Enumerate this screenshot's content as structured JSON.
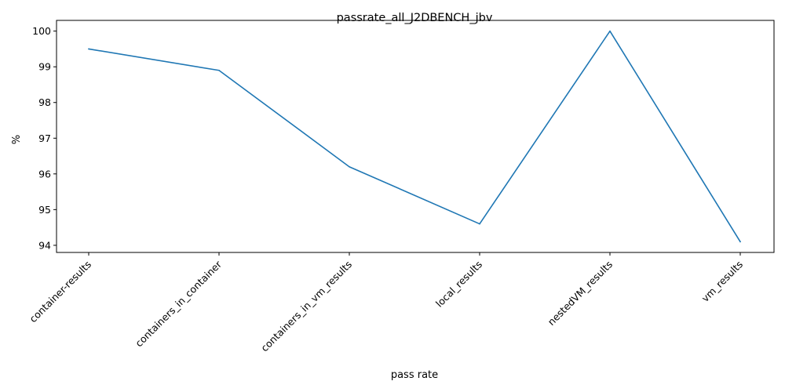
{
  "chart_data": {
    "type": "line",
    "title": "passrate_all_J2DBENCH_jbv",
    "xlabel": "pass rate",
    "ylabel": "%",
    "categories": [
      "container-results",
      "containers_in_container",
      "containers_in_vm_results",
      "local_results",
      "nestedVM_results",
      "vm_results"
    ],
    "series": [
      {
        "values": [
          99.5,
          98.9,
          96.2,
          94.6,
          100.0,
          94.1
        ]
      }
    ],
    "ylim": [
      93.8,
      100.3
    ],
    "yticks": [
      94,
      95,
      96,
      97,
      98,
      99,
      100
    ],
    "grid": false,
    "legend": false,
    "line_color": "#1f77b4"
  }
}
